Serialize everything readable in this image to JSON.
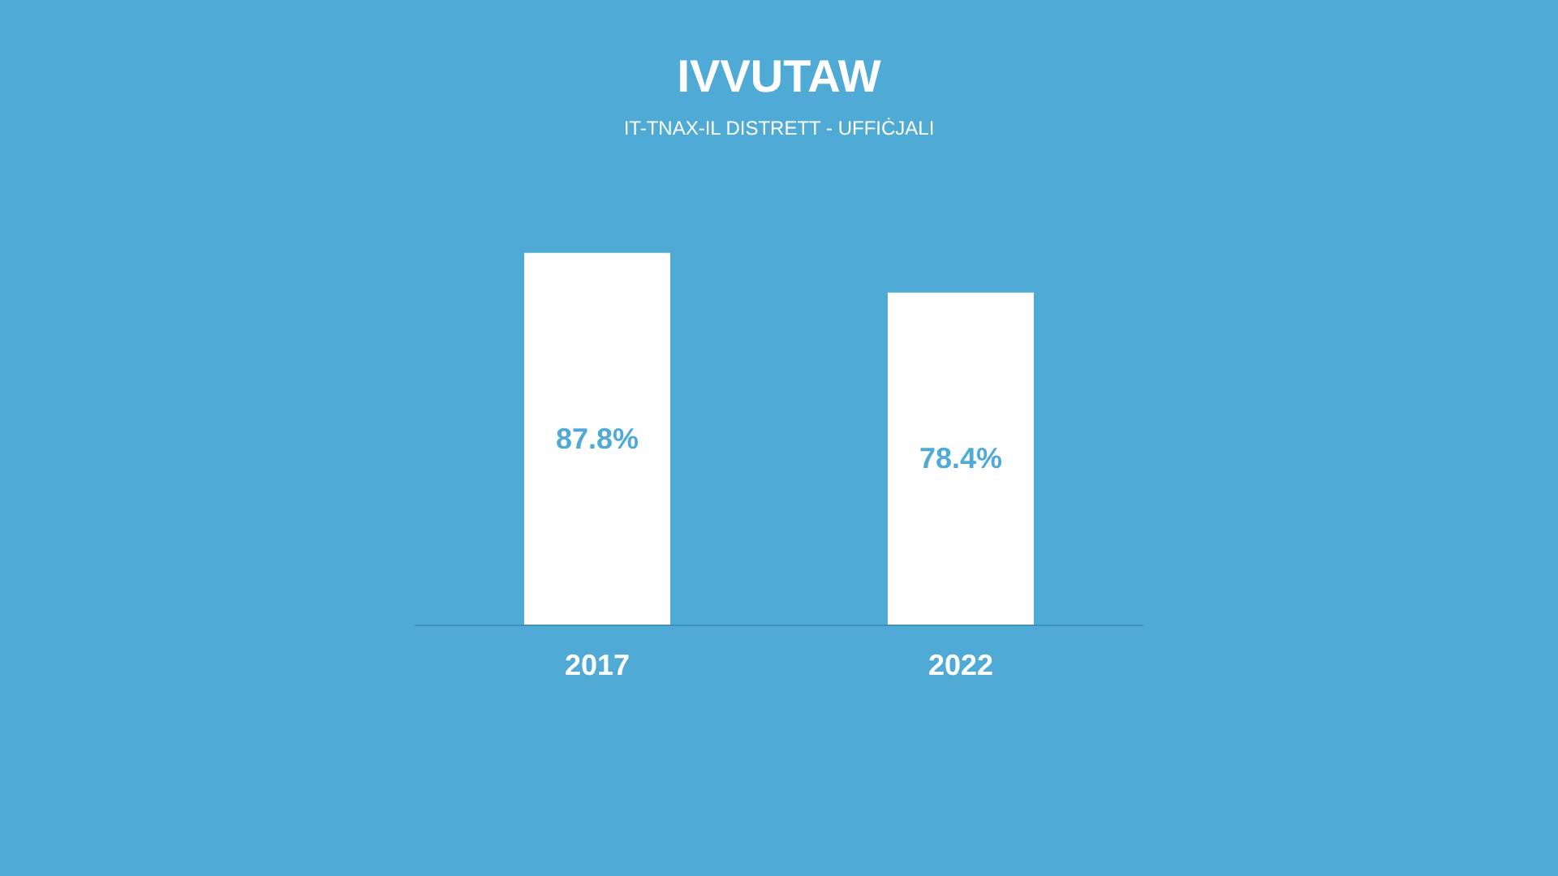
{
  "chart_data": {
    "type": "bar",
    "title": "IVVUTAW",
    "subtitle": "IT-TNAX-IL DISTRETT - UFFIĊJALI",
    "categories": [
      "2017",
      "2022"
    ],
    "values": [
      87.8,
      78.4
    ],
    "value_labels": [
      "87.8%",
      "78.4%"
    ],
    "color": "#ffffff"
  }
}
